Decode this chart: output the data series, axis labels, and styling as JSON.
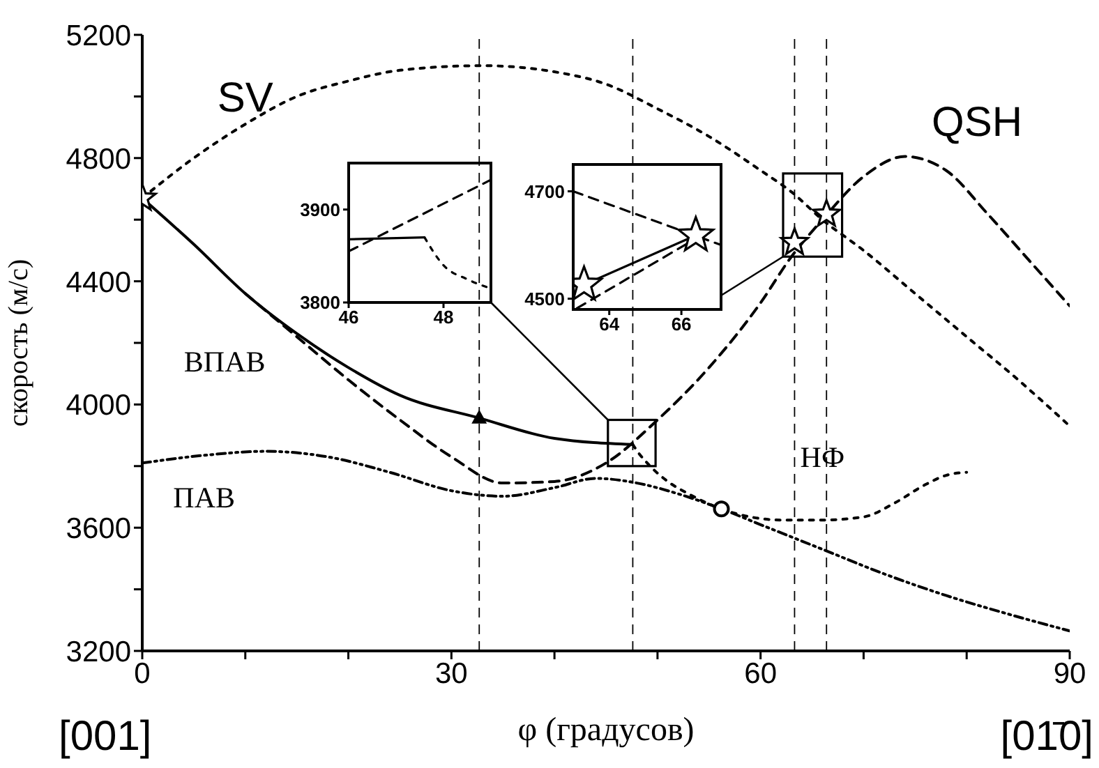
{
  "chart_data": [
    {
      "type": "line",
      "xlabel": "φ (градусов)",
      "ylabel": "скорость (м/с)",
      "xlim": [
        0,
        90
      ],
      "ylim": [
        3200,
        5200
      ],
      "xticks": [
        0,
        {
          "value": 10,
          "label": null
        },
        {
          "value": 20,
          "label": null
        },
        30,
        {
          "value": 40,
          "label": null
        },
        {
          "value": 50,
          "label": null
        },
        60,
        {
          "value": 70,
          "label": null
        },
        {
          "value": 80,
          "label": null
        },
        90
      ],
      "yticks": [
        3200,
        {
          "value": 3400,
          "label": null
        },
        3600,
        {
          "value": 3800,
          "label": null
        },
        4000,
        {
          "value": 4200,
          "label": null
        },
        4400,
        {
          "value": 4600,
          "label": null
        },
        4800,
        {
          "value": 5000,
          "label": null
        },
        5200
      ],
      "grid": false,
      "legend": false,
      "series": [
        {
          "name": "SV",
          "color": "#000000",
          "line_style": "dotted",
          "x": [
            0,
            5,
            10,
            15,
            20,
            25,
            33,
            40,
            45,
            50,
            55,
            60,
            63,
            66,
            70,
            75,
            80,
            85,
            90
          ],
          "values": [
            4670,
            4800,
            4910,
            5000,
            5050,
            5085,
            5100,
            5080,
            5040,
            4960,
            4870,
            4760,
            4690,
            4600,
            4500,
            4360,
            4220,
            4080,
            3930
          ]
        },
        {
          "name": "QSH",
          "color": "#000000",
          "line_style": "dashed",
          "x": [
            10,
            15,
            20,
            25,
            30,
            35,
            40,
            45,
            50,
            55,
            60,
            63,
            66,
            70,
            74,
            78,
            82,
            86,
            90
          ],
          "values": [
            4360,
            4220,
            4080,
            3950,
            3830,
            3745,
            3750,
            3810,
            3950,
            4120,
            4330,
            4480,
            4600,
            4740,
            4805,
            4760,
            4620,
            4470,
            4320
          ]
        },
        {
          "name": "ВПАВ",
          "color": "#000000",
          "line_style": "solid",
          "x": [
            0,
            5,
            10,
            15,
            20,
            25,
            32.7,
            40,
            47.6
          ],
          "values": [
            4670,
            4520,
            4360,
            4230,
            4120,
            4030,
            3956,
            3890,
            3870
          ]
        },
        {
          "name": "ПАВ",
          "color": "#000000",
          "line_style": "dashdot",
          "x": [
            0,
            6,
            12,
            18,
            24,
            30,
            35,
            40,
            44,
            48,
            52,
            56.2,
            60,
            66,
            72,
            78,
            84,
            90
          ],
          "values": [
            3810,
            3835,
            3848,
            3830,
            3780,
            3720,
            3702,
            3730,
            3760,
            3745,
            3710,
            3661,
            3610,
            3530,
            3450,
            3380,
            3320,
            3265
          ]
        },
        {
          "name": "НФ",
          "color": "#000000",
          "line_style": "dotted",
          "x": [
            47.6,
            48,
            49,
            51,
            53,
            56.2,
            59,
            62,
            66,
            70,
            73,
            76,
            78,
            80
          ],
          "values": [
            3870,
            3850,
            3810,
            3750,
            3710,
            3661,
            3635,
            3625,
            3625,
            3635,
            3680,
            3740,
            3770,
            3780
          ]
        },
        {
          "type": "scatter",
          "marker": "star",
          "color": "#000000",
          "x": [
            0
          ],
          "values": [
            4670
          ]
        },
        {
          "type": "scatter",
          "marker": "triangle",
          "color": "#000000",
          "x": [
            32.7
          ],
          "values": [
            3956
          ]
        },
        {
          "type": "scatter",
          "marker": "circle",
          "color": "#000000",
          "x": [
            56.2
          ],
          "values": [
            3661
          ]
        },
        {
          "type": "scatter",
          "marker": "star",
          "color": "#000000",
          "x": [
            63.3
          ],
          "values": [
            4526
          ]
        },
        {
          "type": "scatter",
          "marker": "star",
          "color": "#000000",
          "x": [
            66.4
          ],
          "values": [
            4618
          ]
        }
      ],
      "ref_lines": [
        {
          "axis": "x",
          "value": 32.7,
          "line_style": "dashed"
        },
        {
          "axis": "x",
          "value": 47.6,
          "line_style": "dashed"
        },
        {
          "axis": "x",
          "value": 63.3,
          "line_style": "dashed"
        },
        {
          "axis": "x",
          "value": 66.4,
          "line_style": "dashed"
        }
      ],
      "annotations": [
        "[001]",
        "[01̄0]"
      ]
    },
    {
      "type": "line",
      "xlim": [
        46,
        49
      ],
      "ylim": [
        3800,
        3950
      ],
      "xticks": [
        46,
        48
      ],
      "yticks": [
        3800,
        3900
      ],
      "legend": false,
      "grid": false,
      "series": [
        {
          "color": "#000000",
          "line_style": "solid",
          "x": [
            46,
            47.6
          ],
          "values": [
            3868,
            3870
          ]
        },
        {
          "color": "#000000",
          "line_style": "dashed",
          "x": [
            46,
            49
          ],
          "values": [
            3855,
            3932
          ]
        },
        {
          "color": "#000000",
          "line_style": "dotted",
          "x": [
            47.6,
            48,
            48.5,
            49
          ],
          "values": [
            3870,
            3840,
            3825,
            3815
          ]
        }
      ]
    },
    {
      "type": "line",
      "xlim": [
        63,
        67.1
      ],
      "ylim": [
        4480,
        4750
      ],
      "xticks": [
        64,
        66
      ],
      "yticks": [
        4500,
        4700
      ],
      "legend": false,
      "grid": false,
      "series": [
        {
          "color": "#000000",
          "line_style": "dashed",
          "x": [
            63,
            67.1
          ],
          "values": [
            4700,
            4600
          ]
        },
        {
          "color": "#000000",
          "line_style": "dashed",
          "x": [
            63.1,
            66.4
          ],
          "values": [
            4482,
            4612
          ]
        },
        {
          "color": "#000000",
          "line_style": "solid",
          "x": [
            63.3,
            66.4
          ],
          "values": [
            4526,
            4618
          ]
        },
        {
          "type": "scatter",
          "marker": "star",
          "color": "#000000",
          "x": [
            63.3
          ],
          "values": [
            4526
          ]
        },
        {
          "type": "scatter",
          "marker": "star",
          "color": "#000000",
          "x": [
            66.4
          ],
          "values": [
            4618
          ]
        }
      ]
    }
  ]
}
